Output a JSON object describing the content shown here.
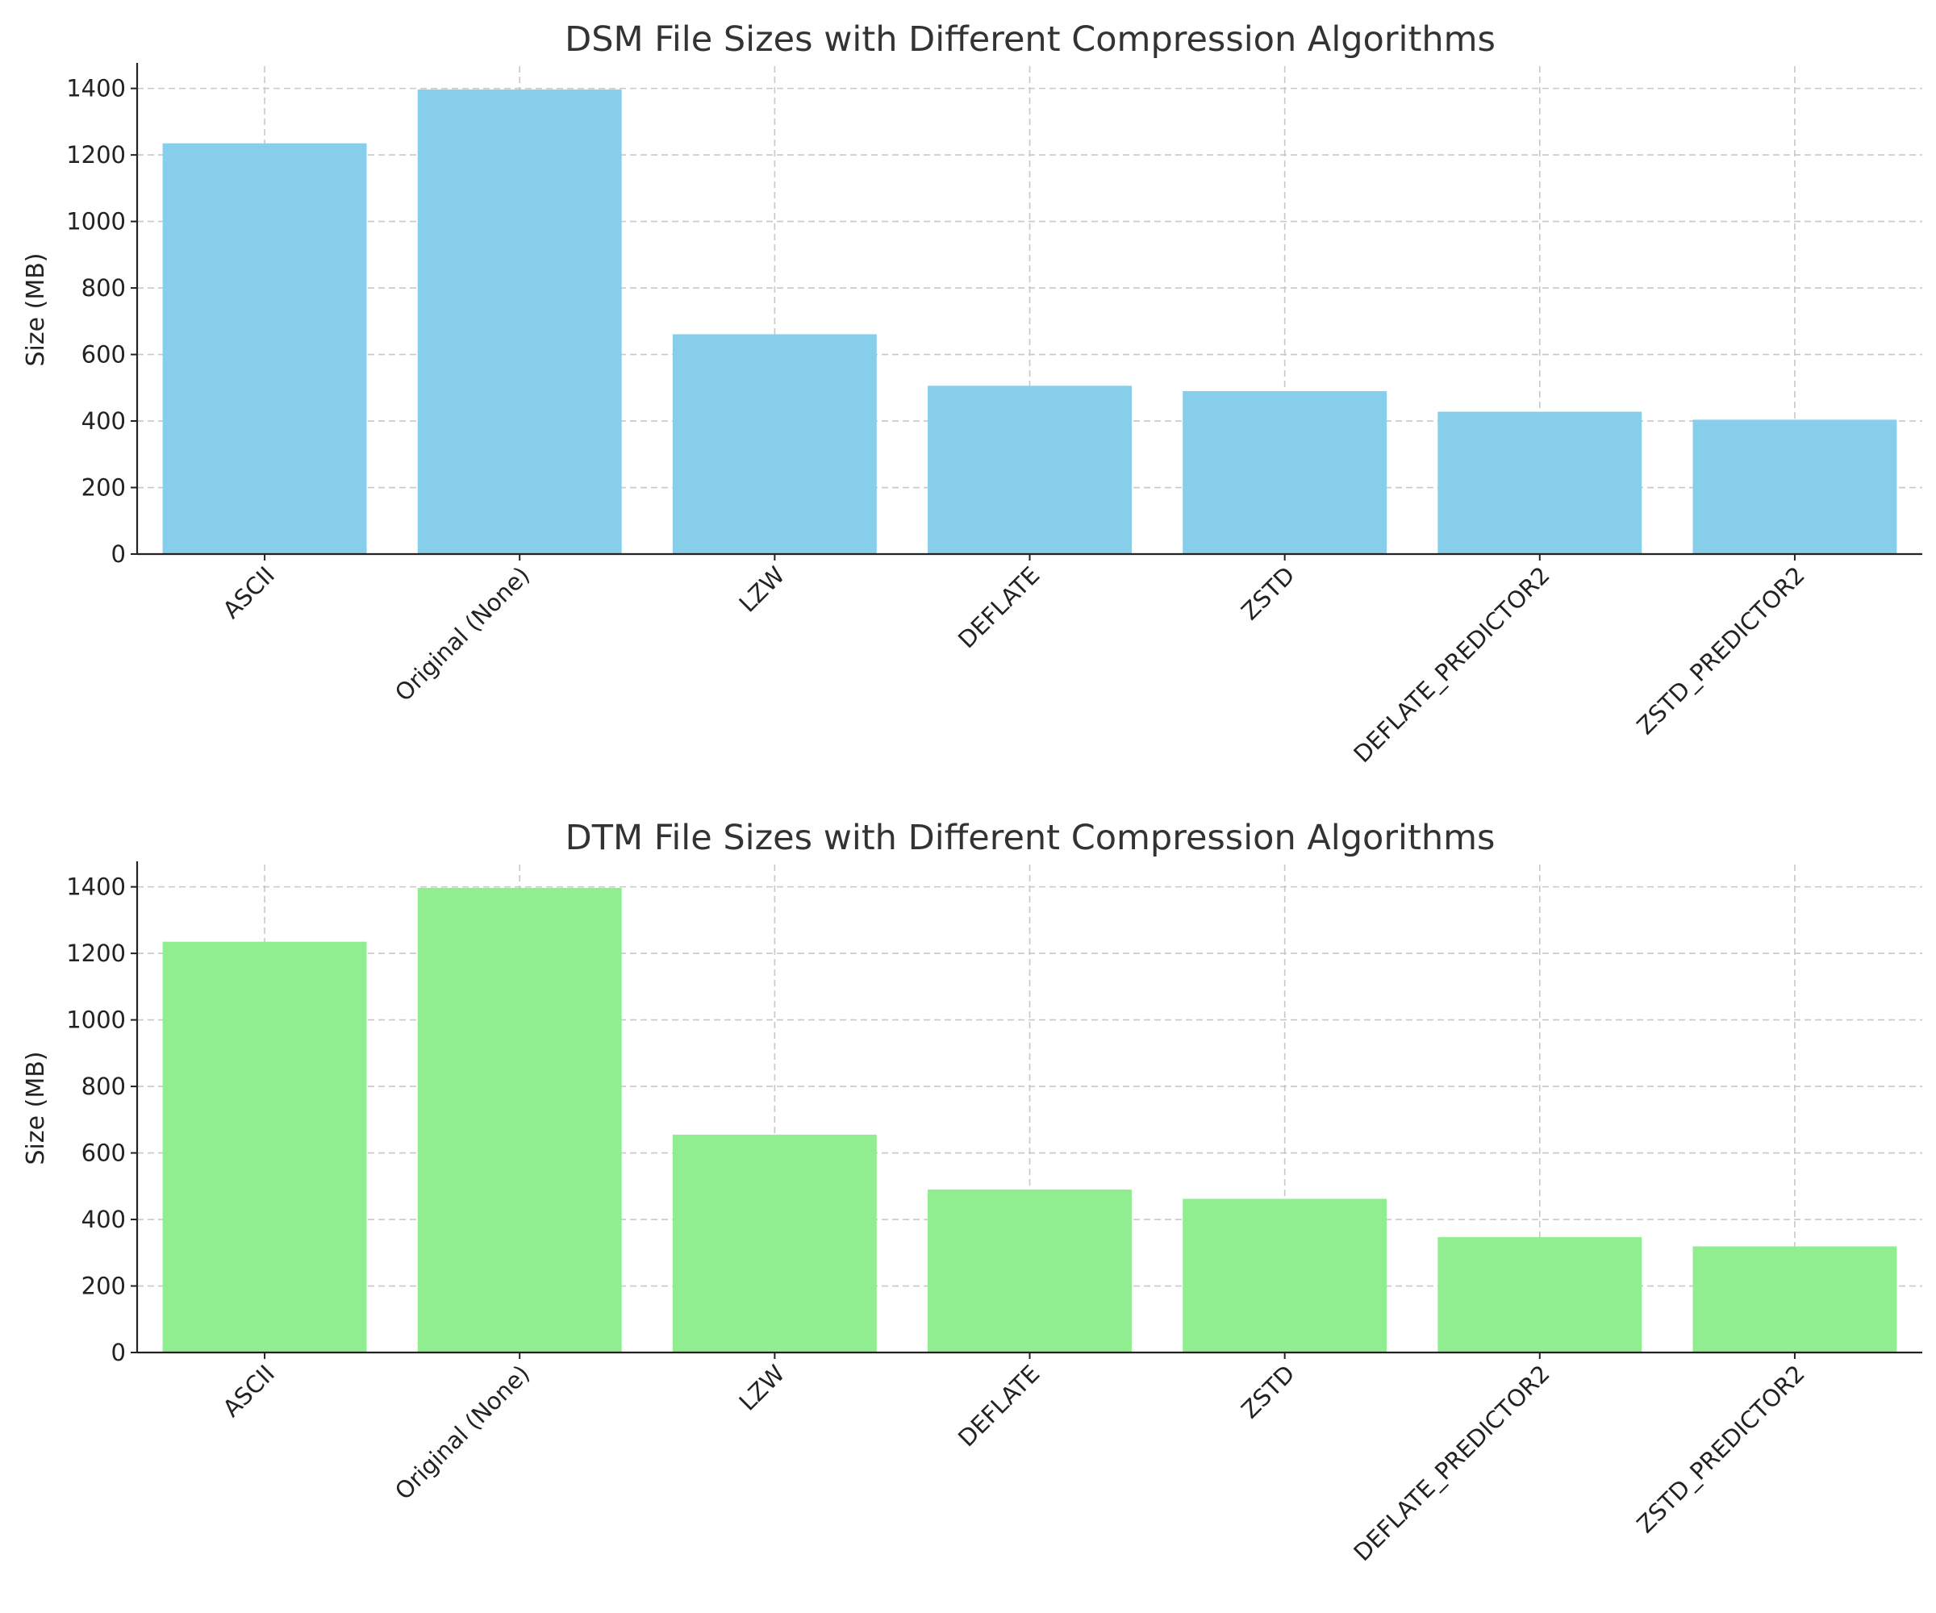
{
  "chart_data": [
    {
      "type": "bar",
      "title": "DSM File Sizes with Different Compression Algorithms",
      "xlabel": "",
      "ylabel": "Size (MB)",
      "categories": [
        "ASCII",
        "Original (None)",
        "LZW",
        "DEFLATE",
        "ZSTD",
        "DEFLATE_PREDICTOR2",
        "ZSTD_PREDICTOR2"
      ],
      "values": [
        1235,
        1397,
        661,
        506,
        490,
        428,
        404
      ],
      "yticks": [
        0,
        200,
        400,
        600,
        800,
        1000,
        1200,
        1400
      ],
      "ylim": [
        0,
        1467
      ],
      "grid": true,
      "color": "#87ceeb"
    },
    {
      "type": "bar",
      "title": "DTM File Sizes with Different Compression Algorithms",
      "xlabel": "",
      "ylabel": "Size (MB)",
      "categories": [
        "ASCII",
        "Original (None)",
        "LZW",
        "DEFLATE",
        "ZSTD",
        "DEFLATE_PREDICTOR2",
        "ZSTD_PREDICTOR2"
      ],
      "values": [
        1235,
        1397,
        655,
        490,
        462,
        347,
        319
      ],
      "yticks": [
        0,
        200,
        400,
        600,
        800,
        1000,
        1200,
        1400
      ],
      "ylim": [
        0,
        1467
      ],
      "grid": true,
      "color": "#90ee90"
    }
  ]
}
